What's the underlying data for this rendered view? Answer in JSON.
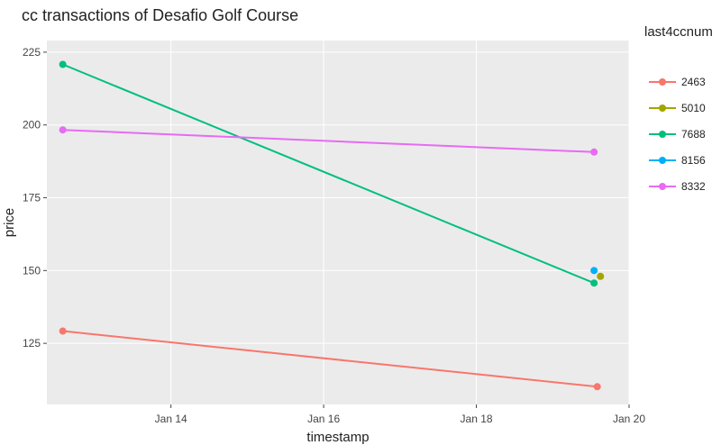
{
  "chart_data": {
    "type": "line",
    "title": "cc transactions of Desafio Golf Course",
    "xlabel": "timestamp",
    "ylabel": "price",
    "x_axis": {
      "type": "date",
      "range": [
        "2014-01-12 09:00",
        "2014-01-20 00:00"
      ],
      "ticks": [
        {
          "value": "2014-01-14",
          "label": "Jan 14"
        },
        {
          "value": "2014-01-16",
          "label": "Jan 16"
        },
        {
          "value": "2014-01-18",
          "label": "Jan 18"
        },
        {
          "value": "2014-01-20",
          "label": "Jan 20"
        }
      ]
    },
    "y_axis": {
      "range": [
        104,
        229
      ],
      "ticks": [
        125,
        150,
        175,
        200,
        225
      ]
    },
    "grid": true,
    "legend": {
      "title": "last4ccnum",
      "position": "right"
    },
    "series": [
      {
        "name": "2463",
        "color": "#F8766D",
        "points": [
          {
            "x": "2014-01-12 14:00",
            "y": 129.2
          },
          {
            "x": "2014-01-19 14:00",
            "y": 110.1
          }
        ]
      },
      {
        "name": "5010",
        "color": "#A3A500",
        "points": [
          {
            "x": "2014-01-19 15:00",
            "y": 148.0
          }
        ]
      },
      {
        "name": "7688",
        "color": "#00BF7D",
        "points": [
          {
            "x": "2014-01-12 14:00",
            "y": 220.8
          },
          {
            "x": "2014-01-19 13:00",
            "y": 145.7
          }
        ]
      },
      {
        "name": "8156",
        "color": "#00B0F6",
        "points": [
          {
            "x": "2014-01-19 13:00",
            "y": 150.0
          }
        ]
      },
      {
        "name": "8332",
        "color": "#E76BF3",
        "points": [
          {
            "x": "2014-01-12 14:00",
            "y": 198.3
          },
          {
            "x": "2014-01-19 13:00",
            "y": 190.7
          }
        ]
      }
    ]
  }
}
